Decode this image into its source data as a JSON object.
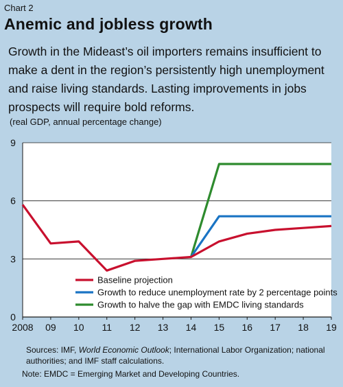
{
  "header": {
    "chart_label": "Chart 2",
    "title": "Anemic and jobless growth",
    "subtitle": "Growth in the Mideast’s oil importers remains insufficient to make a dent in the region’s persistently high unemployment and raise living standards. Lasting improvements in jobs prospects will require bold reforms.",
    "units": "(real GDP, annual percentage change)"
  },
  "footer": {
    "sources_prefix": "Sources: IMF, ",
    "sources_italic": "World Economic Outlook",
    "sources_suffix": "; International Labor Organization; national authorities; and IMF staff calculations.",
    "note": "Note: EMDC = Emerging Market and Developing Countries."
  },
  "colors": {
    "background": "#b9d3e6",
    "plot_bg": "#ffffff",
    "baseline": "#c8102e",
    "unemployment": "#1a74c4",
    "emdc": "#2e8b2e",
    "grid": "#1a1a1a"
  },
  "chart_data": {
    "type": "line",
    "x": [
      2008,
      2009,
      2010,
      2011,
      2012,
      2013,
      2014,
      2015,
      2016,
      2017,
      2018,
      2019
    ],
    "x_tick_labels": [
      "2008",
      "09",
      "10",
      "11",
      "12",
      "13",
      "14",
      "15",
      "16",
      "17",
      "18",
      "19"
    ],
    "ylim": [
      0,
      9
    ],
    "y_ticks": [
      0,
      3,
      6,
      9
    ],
    "y_tick_labels": [
      "0",
      "3",
      "6",
      "9"
    ],
    "grid": true,
    "legend_position": "bottom-center",
    "series": [
      {
        "name": "Baseline projection",
        "color_key": "baseline",
        "x": [
          2008,
          2009,
          2010,
          2011,
          2012,
          2013,
          2014,
          2015,
          2016,
          2017,
          2018,
          2019
        ],
        "values": [
          5.8,
          3.8,
          3.9,
          2.4,
          2.9,
          3.0,
          3.1,
          3.9,
          4.3,
          4.5,
          4.6,
          4.7
        ]
      },
      {
        "name": "Growth to reduce unemployment rate by 2 percentage points",
        "color_key": "unemployment",
        "x": [
          2014,
          2015,
          2016,
          2017,
          2018,
          2019
        ],
        "values": [
          3.1,
          5.2,
          5.2,
          5.2,
          5.2,
          5.2
        ]
      },
      {
        "name": "Growth to halve the gap with EMDC living standards",
        "color_key": "emdc",
        "x": [
          2014,
          2015,
          2016,
          2017,
          2018,
          2019
        ],
        "values": [
          3.1,
          7.9,
          7.9,
          7.9,
          7.9,
          7.9
        ]
      }
    ]
  }
}
